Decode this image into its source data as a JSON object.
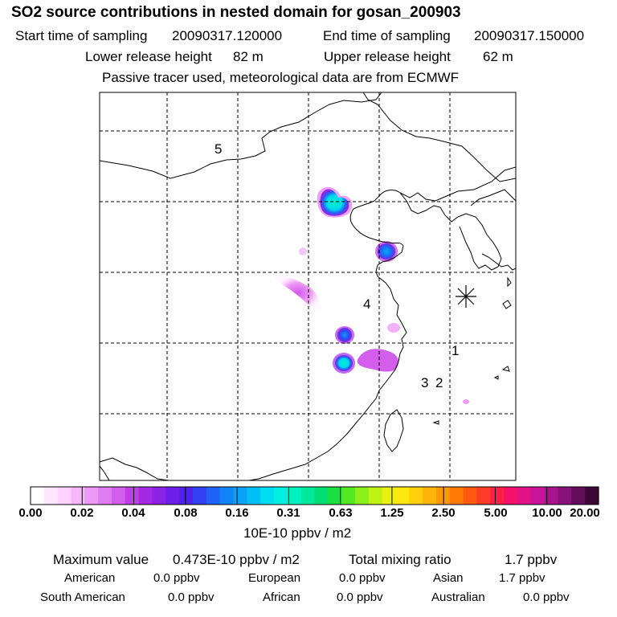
{
  "header": {
    "title": "SO2 source contributions in nested domain for gosan_200903",
    "start_label": "Start time of sampling",
    "start_value": "20090317.120000",
    "end_label": "End time of sampling",
    "end_value": "20090317.150000",
    "lower_label": "Lower release height",
    "lower_value": "82 m",
    "upper_label": "Upper release height",
    "upper_value": "62 m",
    "note": "Passive tracer used, meteorological data are from ECMWF"
  },
  "map": {
    "region_labels": [
      "5",
      "4",
      "1",
      "3",
      "2"
    ],
    "receptor_marker": "asterisk-icon"
  },
  "colorbar": {
    "colors": [
      "#ffffff",
      "#ffe8ff",
      "#ffd2ff",
      "#f7b7fb",
      "#ed9af5",
      "#e07df0",
      "#d25eeb",
      "#be3ee6",
      "#a528e3",
      "#8c22e6",
      "#6e20ea",
      "#4f22ee",
      "#3140f2",
      "#1f62f5",
      "#1283f7",
      "#0aa2f8",
      "#02c0f7",
      "#00dcf0",
      "#00efe0",
      "#00f0c0",
      "#00e89a",
      "#00de72",
      "#1ade3e",
      "#54e622",
      "#8cee1a",
      "#bff214",
      "#eaf010",
      "#ffe60c",
      "#ffcf0a",
      "#ffb408",
      "#ff9806",
      "#ff7a06",
      "#ff5a10",
      "#ff3c28",
      "#ff1e48",
      "#f5106a",
      "#e01288",
      "#c8149a",
      "#a8148e",
      "#861478",
      "#620e5a",
      "#3c0838"
    ],
    "labels": [
      "0.00",
      "0.02",
      "0.04",
      "0.08",
      "0.16",
      "0.31",
      "0.63",
      "1.25",
      "2.50",
      "5.00",
      "10.00",
      "20.00"
    ],
    "unit": "10E-10 ppbv / m2"
  },
  "stats": {
    "max_label": "Maximum value",
    "max_value": "0.473E-10 ppbv / m2",
    "total_label": "Total mixing ratio",
    "total_value": "1.7 ppbv",
    "american_label": "American",
    "american_value": "0.0 ppbv",
    "european_label": "European",
    "european_value": "0.0 ppbv",
    "asian_label": "Asian",
    "asian_value": "1.7 ppbv",
    "south_american_label": "South American",
    "south_american_value": "0.0 ppbv",
    "african_label": "African",
    "african_value": "0.0 ppbv",
    "australian_label": "Australian",
    "australian_value": "0.0 ppbv"
  }
}
